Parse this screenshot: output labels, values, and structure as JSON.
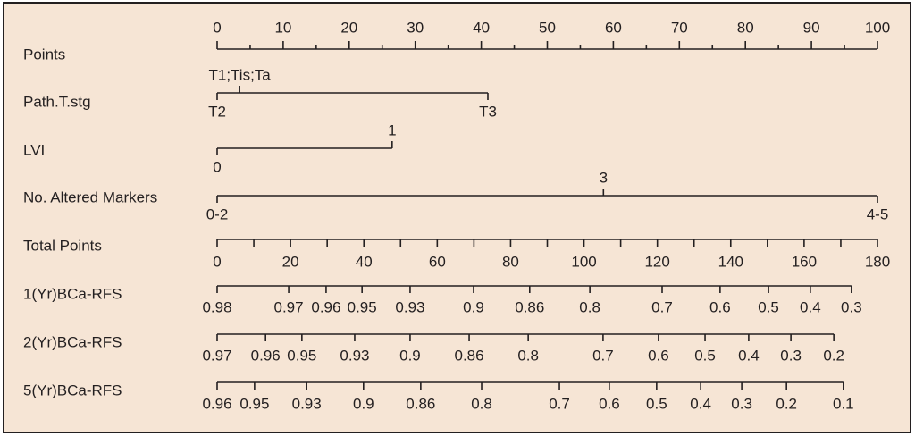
{
  "chart_data": {
    "type": "nomogram",
    "points_axis": {
      "name": "Points",
      "lim": [
        0,
        100
      ],
      "ticks": [
        0,
        10,
        20,
        30,
        40,
        50,
        60,
        70,
        80,
        90,
        100
      ],
      "minor_ticks": [
        5,
        15,
        25,
        35,
        45,
        55,
        65,
        75,
        85,
        95
      ]
    },
    "variables": [
      {
        "name": "Path.T.stg",
        "levels": [
          {
            "label": "T1;Tis;Ta",
            "value": 3.4,
            "side": "above"
          },
          {
            "label": "T2",
            "value": 0,
            "side": "below"
          },
          {
            "label": "T3",
            "value": 41,
            "side": "below"
          }
        ]
      },
      {
        "name": "LVI",
        "levels": [
          {
            "label": "1",
            "value": 26.5,
            "side": "above"
          },
          {
            "label": "0",
            "value": 0,
            "side": "below"
          }
        ]
      },
      {
        "name": "No. Altered Markers",
        "levels": [
          {
            "label": "3",
            "value": 58.5,
            "side": "above"
          },
          {
            "label": "0-2",
            "value": 0,
            "side": "below"
          },
          {
            "label": "4-5",
            "value": 100,
            "side": "below"
          }
        ]
      }
    ],
    "total_axis": {
      "name": "Total Points",
      "lim": [
        0,
        180
      ],
      "ticks": [
        0,
        20,
        40,
        60,
        80,
        100,
        120,
        140,
        160,
        180
      ],
      "minor_ticks": [
        10,
        30,
        50,
        70,
        90,
        110,
        130,
        150,
        170
      ]
    },
    "probability_scales": [
      {
        "name": "1(Yr)BCa-RFS",
        "ticks": [
          {
            "value": 0,
            "label": "0.98"
          },
          {
            "value": 19.5,
            "label": "0.97"
          },
          {
            "value": 29.7,
            "label": "0.96"
          },
          {
            "value": 39.5,
            "label": "0.95"
          },
          {
            "value": 52.6,
            "label": "0.93"
          },
          {
            "value": 69.9,
            "label": "0.9"
          },
          {
            "value": 85.2,
            "label": "0.86"
          },
          {
            "value": 101.6,
            "label": "0.8"
          },
          {
            "value": 121.3,
            "label": "0.7"
          },
          {
            "value": 137.1,
            "label": "0.6"
          },
          {
            "value": 150.3,
            "label": "0.5"
          },
          {
            "value": 161.7,
            "label": "0.4"
          },
          {
            "value": 172.9,
            "label": "0.3"
          }
        ]
      },
      {
        "name": "2(Yr)BCa-RFS",
        "ticks": [
          {
            "value": 0,
            "label": "0.97"
          },
          {
            "value": 13.2,
            "label": "0.96"
          },
          {
            "value": 23.1,
            "label": "0.95"
          },
          {
            "value": 37.5,
            "label": "0.93"
          },
          {
            "value": 52.6,
            "label": "0.9"
          },
          {
            "value": 68.7,
            "label": "0.86"
          },
          {
            "value": 84.8,
            "label": "0.8"
          },
          {
            "value": 105.2,
            "label": "0.7"
          },
          {
            "value": 120.3,
            "label": "0.6"
          },
          {
            "value": 133.0,
            "label": "0.5"
          },
          {
            "value": 144.9,
            "label": "0.4"
          },
          {
            "value": 156.4,
            "label": "0.3"
          },
          {
            "value": 168.1,
            "label": "0.2"
          }
        ]
      },
      {
        "name": "5(Yr)BCa-RFS",
        "ticks": [
          {
            "value": 0,
            "label": "0.96"
          },
          {
            "value": 10.2,
            "label": "0.95"
          },
          {
            "value": 24.4,
            "label": "0.93"
          },
          {
            "value": 39.9,
            "label": "0.9"
          },
          {
            "value": 55.5,
            "label": "0.86"
          },
          {
            "value": 72.1,
            "label": "0.8"
          },
          {
            "value": 93.3,
            "label": "0.7"
          },
          {
            "value": 106.9,
            "label": "0.6"
          },
          {
            "value": 119.8,
            "label": "0.5"
          },
          {
            "value": 131.8,
            "label": "0.4"
          },
          {
            "value": 143.0,
            "label": "0.3"
          },
          {
            "value": 155.2,
            "label": "0.2"
          },
          {
            "value": 170.7,
            "label": "0.1"
          }
        ]
      }
    ]
  }
}
